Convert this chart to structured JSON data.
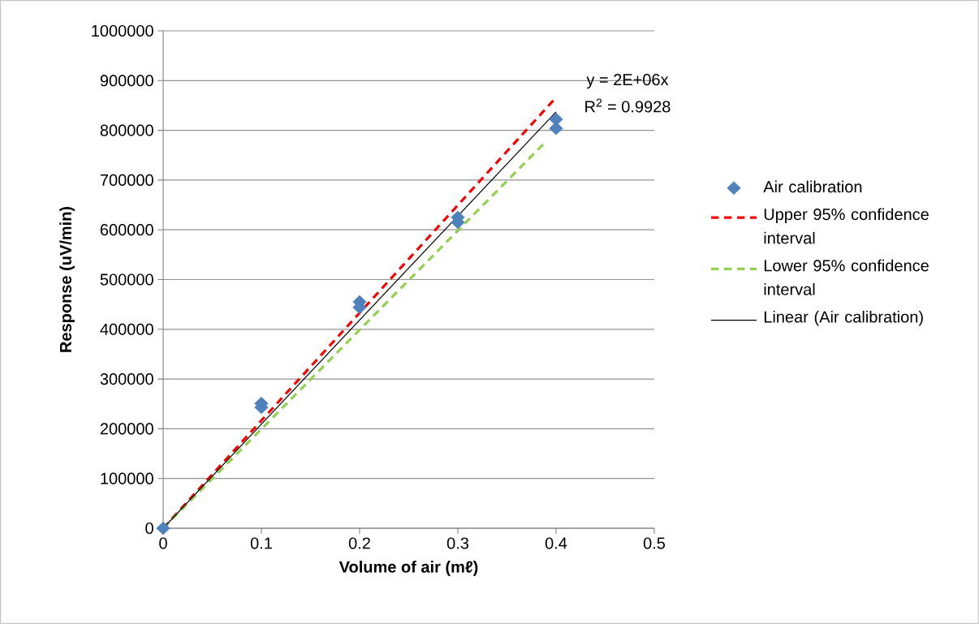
{
  "chart_data": {
    "type": "scatter",
    "xlabel": "Volume of air (mℓ)",
    "ylabel": "Response (uV/min)",
    "xlim": [
      0,
      0.5
    ],
    "xticks": [
      0,
      0.1,
      0.2,
      0.3,
      0.4,
      0.5
    ],
    "ylim": [
      0,
      1000000
    ],
    "yticks": [
      0,
      100000,
      200000,
      300000,
      400000,
      500000,
      600000,
      700000,
      800000,
      900000,
      1000000
    ],
    "grid": "y",
    "legend": "right",
    "annotations": [
      "y = 2E+06x",
      "R$^{2}$ = 0.9928"
    ],
    "series": [
      {
        "name": "Air calibration",
        "marker": "diamond",
        "color": "#4f81bd",
        "x": [
          0,
          0.1,
          0.1,
          0.2,
          0.2,
          0.3,
          0.3,
          0.4,
          0.4
        ],
        "values": [
          0,
          251000,
          243000,
          455000,
          444000,
          625000,
          615000,
          822000,
          804000
        ]
      },
      {
        "name": "Upper 95% confidence interval",
        "type": "line",
        "line_style": "dashed",
        "color": "#ff0000",
        "x": [
          0,
          0.4
        ],
        "values": [
          0,
          866000
        ]
      },
      {
        "name": "Lower 95% confidence interval",
        "type": "line",
        "line_style": "dashed",
        "color": "#92d050",
        "x": [
          0,
          0.39
        ],
        "values": [
          0,
          778000
        ]
      },
      {
        "name": "Linear (Air calibration)",
        "type": "line",
        "line_style": "solid",
        "color": "#000000",
        "x": [
          0,
          0.4
        ],
        "values": [
          0,
          837000
        ]
      }
    ]
  }
}
